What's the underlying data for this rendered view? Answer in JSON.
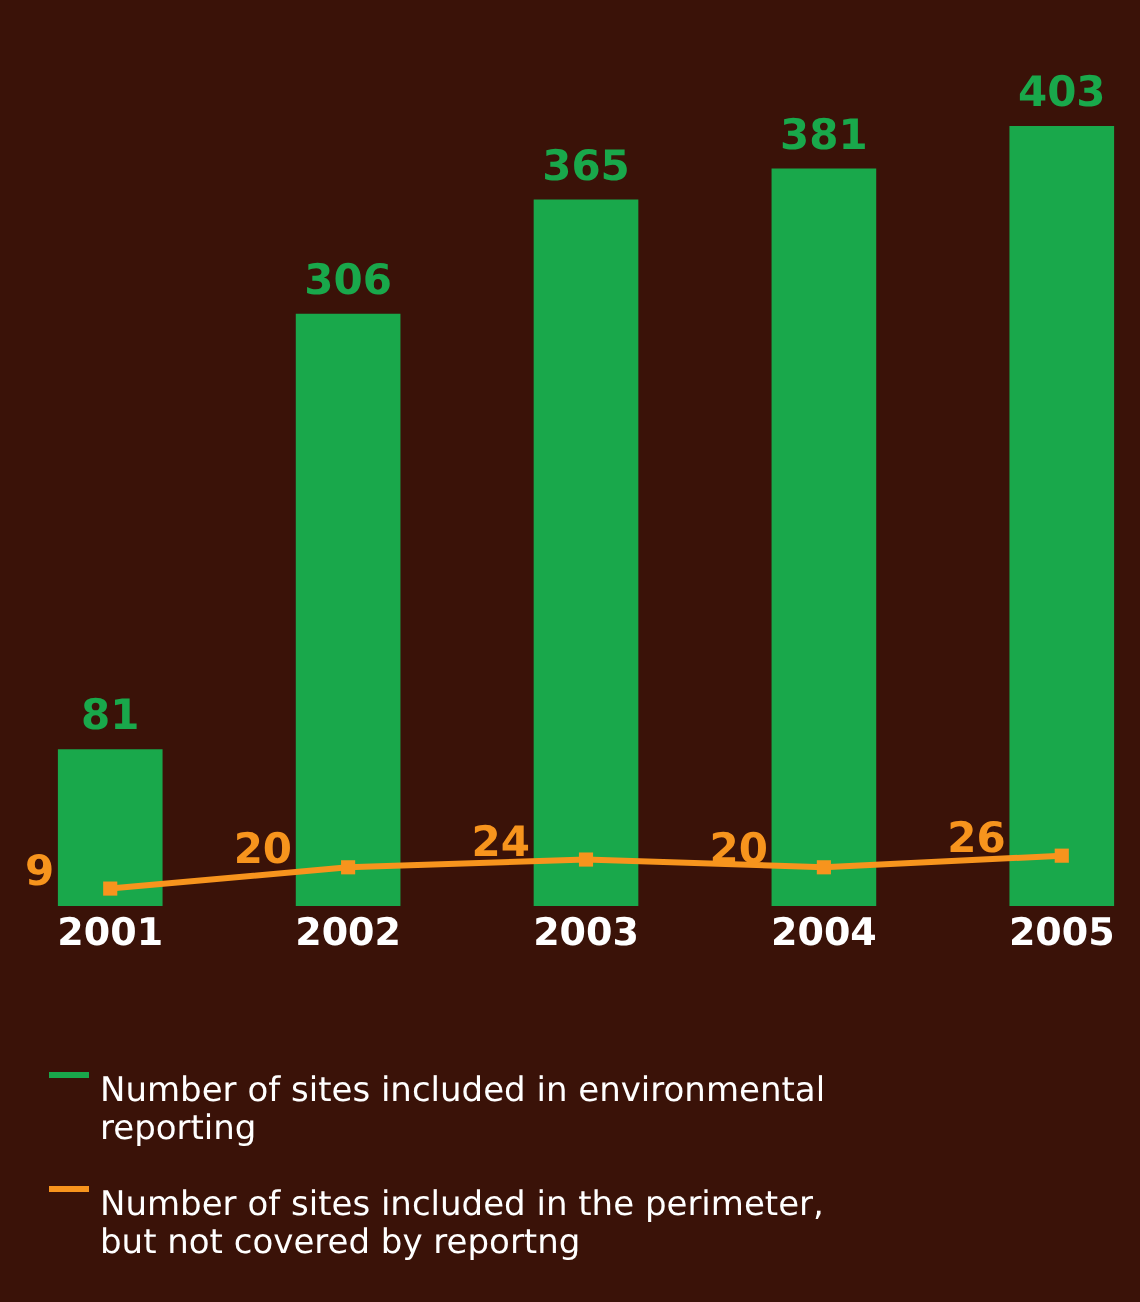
{
  "chart_data": {
    "type": "bar",
    "categories": [
      "2001",
      "2002",
      "2003",
      "2004",
      "2005"
    ],
    "series": [
      {
        "name": "Number of sites included in environmental reporting",
        "color": "#19a84b",
        "values": [
          81,
          306,
          365,
          381,
          403
        ]
      },
      {
        "name": "Number of sites included in the perimeter, but not covered by reportng",
        "type": "line",
        "color": "#f7941d",
        "values": [
          9,
          20,
          24,
          20,
          26
        ]
      }
    ],
    "data_labels": true,
    "marker": "square",
    "legend": "bottom"
  }
}
